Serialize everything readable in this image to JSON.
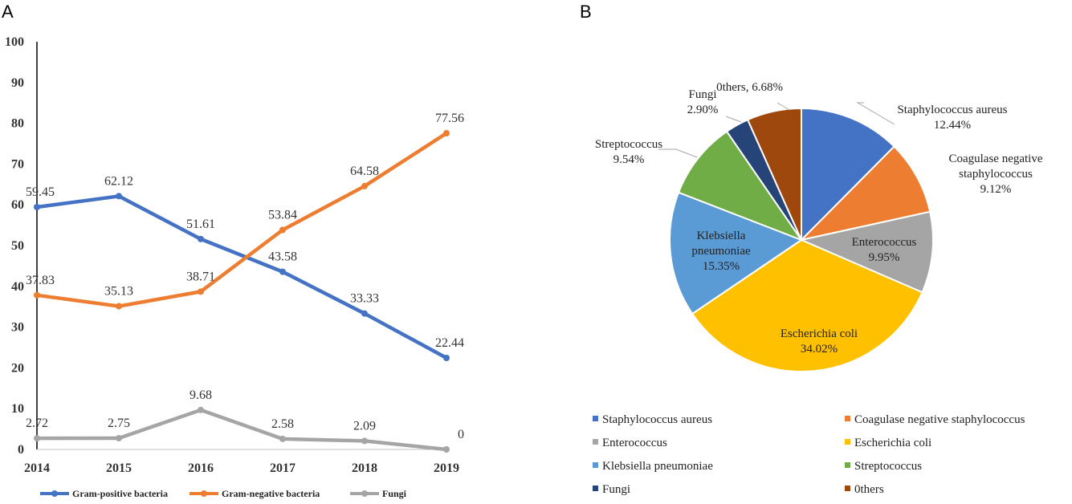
{
  "panels": {
    "a": "A",
    "b": "B"
  },
  "chart_data": [
    {
      "type": "line",
      "title": "",
      "xlabel": "",
      "ylabel": "",
      "categories": [
        "2014",
        "2015",
        "2016",
        "2017",
        "2018",
        "2019"
      ],
      "ylim": [
        0,
        100
      ],
      "yticks": [
        0,
        10,
        20,
        30,
        40,
        50,
        60,
        70,
        80,
        90,
        100
      ],
      "legend_position": "bottom",
      "series": [
        {
          "name": "Gram-positive bacteria",
          "color": "#4472C4",
          "values": [
            59.45,
            62.12,
            51.61,
            43.58,
            33.33,
            22.44
          ],
          "labels": [
            "59.45",
            "62.12",
            "51.61",
            "43.58",
            "33.33",
            "22.44"
          ]
        },
        {
          "name": "Gram-negative bacteria",
          "color": "#ED7D31",
          "values": [
            37.83,
            35.13,
            38.71,
            53.84,
            64.58,
            77.56
          ],
          "labels": [
            "37.83",
            "35.13",
            "38.71",
            "53.84",
            "64.58",
            "77.56"
          ]
        },
        {
          "name": "Fungi",
          "color": "#A5A5A5",
          "values": [
            2.72,
            2.75,
            9.68,
            2.58,
            2.09,
            0
          ],
          "labels": [
            "2.72",
            "2.75",
            "9.68",
            "2.58",
            "2.09",
            "0"
          ]
        }
      ]
    },
    {
      "type": "pie",
      "title": "",
      "legend_position": "bottom",
      "slices": [
        {
          "name": "Staphylococcus aureus",
          "value": 12.44,
          "color": "#4472C4",
          "label": [
            "Staphylococcus  aureus",
            "12.44%"
          ]
        },
        {
          "name": "Coagulase negative staphylococcus",
          "value": 9.12,
          "color": "#ED7D31",
          "label": [
            "Coagulase  negative",
            "staphylococcus",
            "9.12%"
          ]
        },
        {
          "name": "Enterococcus",
          "value": 9.95,
          "color": "#A5A5A5",
          "label": [
            "Enterococcus",
            "9.95%"
          ]
        },
        {
          "name": "Escherichia coli",
          "value": 34.02,
          "color": "#FFC000",
          "label": [
            "Escherichia  coli",
            "34.02%"
          ]
        },
        {
          "name": "Klebsiella pneumoniae",
          "value": 15.35,
          "color": "#5B9BD5",
          "label": [
            "Klebsiella",
            "pneumoniae",
            "15.35%"
          ]
        },
        {
          "name": "Streptococcus",
          "value": 9.54,
          "color": "#70AD47",
          "label": [
            "Streptococcus",
            "9.54%"
          ]
        },
        {
          "name": "Fungi",
          "value": 2.9,
          "color": "#264478",
          "label": [
            "Fungi",
            "2.90%"
          ]
        },
        {
          "name": "0thers",
          "value": 6.68,
          "color": "#9E480E",
          "label": [
            "0thers,  6.68%"
          ]
        }
      ]
    }
  ]
}
